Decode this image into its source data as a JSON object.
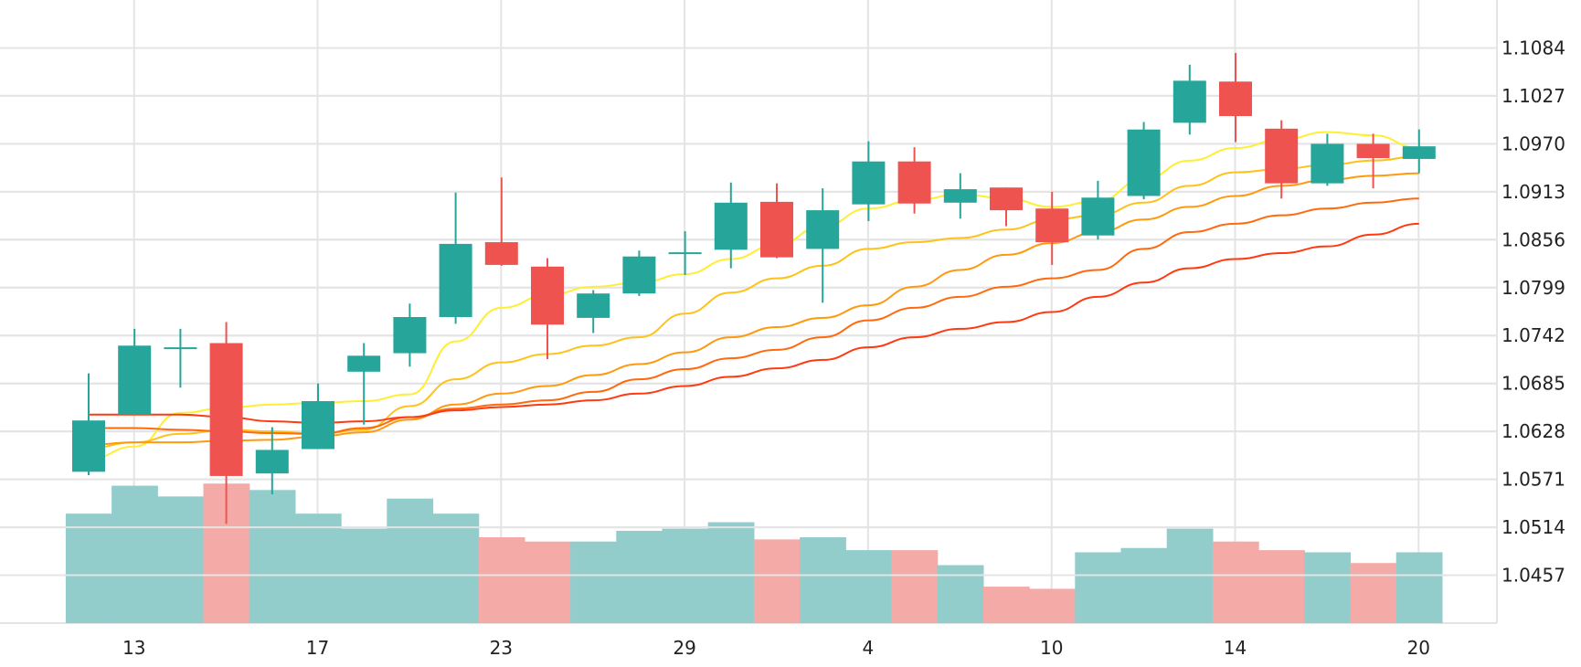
{
  "chart_data": {
    "type": "candlestick",
    "x_tick_labels": [
      "13",
      "17",
      "23",
      "29",
      "4",
      "10",
      "14",
      "20"
    ],
    "x_tick_candle_index": [
      1,
      5,
      9,
      13,
      17,
      21,
      25,
      29
    ],
    "y_axis": {
      "ticks": [
        1.1084,
        1.1027,
        1.097,
        1.0913,
        1.0856,
        1.0799,
        1.0742,
        1.0685,
        1.0628,
        1.0571,
        1.0514,
        1.0457
      ],
      "range": [
        1.04,
        1.1141
      ],
      "side": "right"
    },
    "grid": true,
    "candles": [
      {
        "o": 1.058,
        "h": 1.0697,
        "l": 1.0576,
        "c": 1.0641
      },
      {
        "o": 1.0648,
        "h": 1.075,
        "l": 1.0648,
        "c": 1.073
      },
      {
        "o": 1.0728,
        "h": 1.075,
        "l": 1.068,
        "c": 1.0728
      },
      {
        "o": 1.0733,
        "h": 1.0758,
        "l": 1.0518,
        "c": 1.0575
      },
      {
        "o": 1.0578,
        "h": 1.0633,
        "l": 1.0553,
        "c": 1.0606
      },
      {
        "o": 1.0607,
        "h": 1.0685,
        "l": 1.0607,
        "c": 1.0664
      },
      {
        "o": 1.0699,
        "h": 1.0733,
        "l": 1.0636,
        "c": 1.0718
      },
      {
        "o": 1.0721,
        "h": 1.078,
        "l": 1.0705,
        "c": 1.0764
      },
      {
        "o": 1.0764,
        "h": 1.0912,
        "l": 1.0756,
        "c": 1.0851
      },
      {
        "o": 1.0853,
        "h": 1.093,
        "l": 1.0825,
        "c": 1.0826
      },
      {
        "o": 1.0824,
        "h": 1.0834,
        "l": 1.0714,
        "c": 1.0755
      },
      {
        "o": 1.0763,
        "h": 1.0796,
        "l": 1.0745,
        "c": 1.0792
      },
      {
        "o": 1.0792,
        "h": 1.0843,
        "l": 1.0789,
        "c": 1.0836
      },
      {
        "o": 1.0841,
        "h": 1.0866,
        "l": 1.0814,
        "c": 1.0841
      },
      {
        "o": 1.0844,
        "h": 1.0924,
        "l": 1.0822,
        "c": 1.09
      },
      {
        "o": 1.0901,
        "h": 1.0923,
        "l": 1.0834,
        "c": 1.0835
      },
      {
        "o": 1.0845,
        "h": 1.0917,
        "l": 1.0781,
        "c": 1.0891
      },
      {
        "o": 1.0898,
        "h": 1.0973,
        "l": 1.0878,
        "c": 1.0949
      },
      {
        "o": 1.0949,
        "h": 1.0966,
        "l": 1.0887,
        "c": 1.0899
      },
      {
        "o": 1.09,
        "h": 1.0935,
        "l": 1.0881,
        "c": 1.0916
      },
      {
        "o": 1.0918,
        "h": 1.0918,
        "l": 1.0872,
        "c": 1.0891
      },
      {
        "o": 1.0893,
        "h": 1.0913,
        "l": 1.0826,
        "c": 1.0853
      },
      {
        "o": 1.0861,
        "h": 1.0926,
        "l": 1.0856,
        "c": 1.0906
      },
      {
        "o": 1.0908,
        "h": 1.0996,
        "l": 1.0904,
        "c": 1.0987
      },
      {
        "o": 1.0995,
        "h": 1.1064,
        "l": 1.0981,
        "c": 1.1045
      },
      {
        "o": 1.1044,
        "h": 1.1078,
        "l": 1.0972,
        "c": 1.1003
      },
      {
        "o": 1.0988,
        "h": 1.0998,
        "l": 1.0905,
        "c": 1.0923
      },
      {
        "o": 1.0923,
        "h": 1.0982,
        "l": 1.092,
        "c": 1.097
      },
      {
        "o": 1.097,
        "h": 1.0982,
        "l": 1.0917,
        "c": 1.0953
      },
      {
        "o": 1.0952,
        "h": 1.0987,
        "l": 1.0935,
        "c": 1.0967
      }
    ],
    "volume_relative": [
      0.51,
      0.64,
      0.59,
      0.65,
      0.62,
      0.51,
      0.44,
      0.58,
      0.51,
      0.4,
      0.38,
      0.38,
      0.43,
      0.44,
      0.47,
      0.39,
      0.4,
      0.34,
      0.34,
      0.27,
      0.17,
      0.16,
      0.33,
      0.35,
      0.44,
      0.38,
      0.34,
      0.33,
      0.28,
      0.33
    ],
    "moving_averages": [
      {
        "color": "#ffee33",
        "values": [
          1.0595,
          1.061,
          1.065,
          1.0656,
          1.066,
          1.0662,
          1.0664,
          1.0672,
          1.0735,
          1.0775,
          1.079,
          1.08,
          1.0805,
          1.0815,
          1.0833,
          1.085,
          1.0872,
          1.0893,
          1.0903,
          1.091,
          1.0905,
          1.0895,
          1.0902,
          1.0928,
          1.095,
          1.0965,
          1.0975,
          1.0984,
          1.098,
          1.0965
        ]
      },
      {
        "color": "#ffc21a",
        "values": [
          1.0608,
          1.0615,
          1.0625,
          1.063,
          1.0628,
          1.0625,
          1.063,
          1.0658,
          1.069,
          1.071,
          1.072,
          1.073,
          1.074,
          1.0768,
          1.0793,
          1.081,
          1.0825,
          1.0845,
          1.0853,
          1.0858,
          1.0868,
          1.088,
          1.0885,
          1.09,
          1.092,
          1.0936,
          1.094,
          1.0945,
          1.095,
          1.0955
        ]
      },
      {
        "color": "#ff9a10",
        "values": [
          1.0612,
          1.0615,
          1.0615,
          1.0617,
          1.0618,
          1.0622,
          1.0627,
          1.0642,
          1.066,
          1.0673,
          1.0682,
          1.0695,
          1.0708,
          1.0722,
          1.074,
          1.0752,
          1.0763,
          1.0778,
          1.08,
          1.082,
          1.0838,
          1.0852,
          1.0865,
          1.088,
          1.0895,
          1.0908,
          1.092,
          1.0927,
          1.0932,
          1.0935
        ]
      },
      {
        "color": "#ff6a0e",
        "values": [
          1.0632,
          1.0632,
          1.063,
          1.0628,
          1.0626,
          1.0625,
          1.0632,
          1.0645,
          1.0655,
          1.066,
          1.0665,
          1.0675,
          1.069,
          1.0702,
          1.0715,
          1.0725,
          1.074,
          1.076,
          1.0775,
          1.0788,
          1.08,
          1.081,
          1.082,
          1.0845,
          1.0865,
          1.0875,
          1.0885,
          1.0893,
          1.09,
          1.0905
        ]
      },
      {
        "color": "#ff3a10",
        "values": [
          1.0648,
          1.0648,
          1.0648,
          1.0645,
          1.064,
          1.0638,
          1.064,
          1.0645,
          1.0653,
          1.0657,
          1.066,
          1.0665,
          1.0673,
          1.0682,
          1.0693,
          1.0703,
          1.0713,
          1.0728,
          1.074,
          1.075,
          1.0758,
          1.077,
          1.0788,
          1.0805,
          1.0822,
          1.0833,
          1.084,
          1.0848,
          1.0862,
          1.0875
        ]
      }
    ],
    "colors": {
      "up": "#26a69a",
      "down": "#ef5350",
      "volume_up": "#92cdcc",
      "volume_down": "#f4aba7",
      "grid": "#e4e4e4",
      "axis_text": "#222222"
    }
  }
}
